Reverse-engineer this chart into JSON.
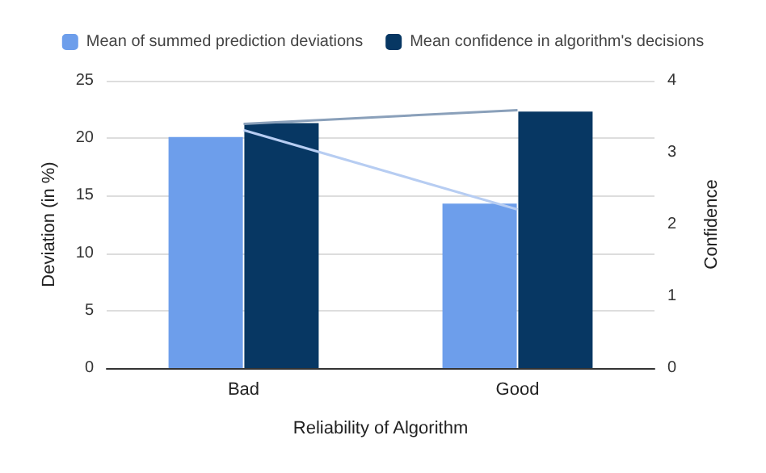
{
  "chart_data": {
    "type": "bar",
    "xlabel": "Reliability of Algorithm",
    "ylabel": "Deviation (in %)",
    "y2label": "Confidence",
    "categories": [
      "Bad",
      "Good"
    ],
    "series": [
      {
        "name": "Mean of summed prediction deviations",
        "color": "#6d9eeb",
        "values": [
          20.1,
          14.3
        ]
      },
      {
        "name": "Mean confidence in algorithm's decisions",
        "color": "#073763",
        "values": [
          3.41,
          3.57
        ],
        "axis": "y2"
      },
      {
        "type": "line",
        "color": "#b7cdf2",
        "values": [
          20.7,
          13.8
        ]
      },
      {
        "type": "line",
        "color": "#8aa0ba",
        "values": [
          3.4,
          3.59
        ],
        "axis": "y2"
      }
    ],
    "ylim": [
      0,
      25
    ],
    "yticks": [
      0,
      5,
      10,
      15,
      20,
      25
    ],
    "y2lim": [
      0,
      4
    ],
    "y2ticks": [
      0,
      1,
      2,
      3,
      4
    ],
    "grid": "y",
    "legend": "top"
  }
}
